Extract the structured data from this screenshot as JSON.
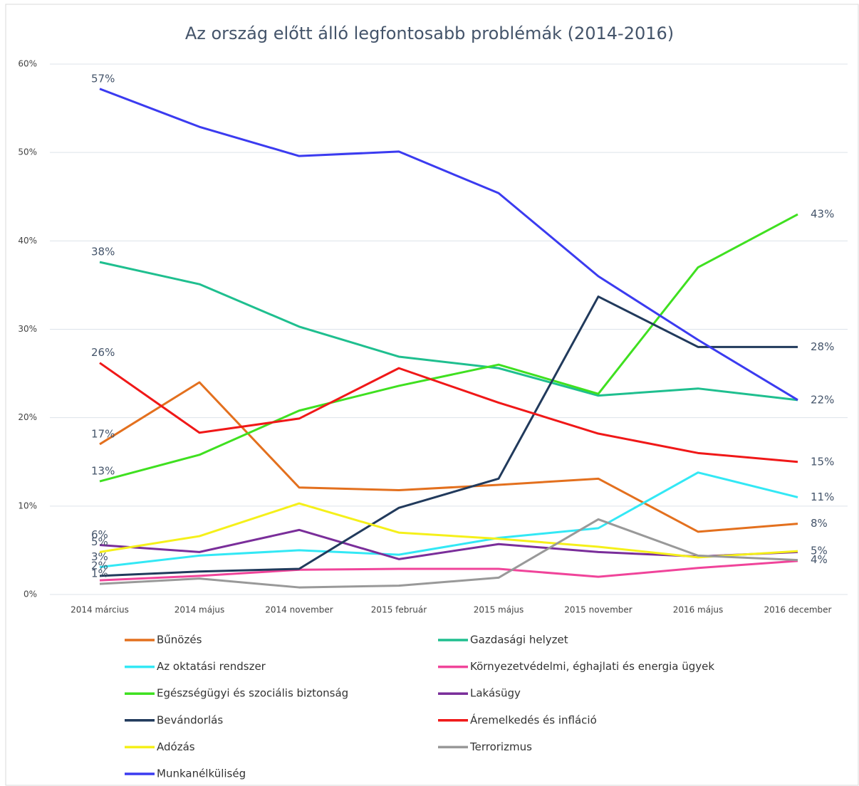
{
  "chart_data": {
    "type": "line",
    "title": "Az ország előtt álló legfontosabb problémák (2014-2016)",
    "categories": [
      "2014 március",
      "2014 május",
      "2014 november",
      "2015 február",
      "2015 május",
      "2015 november",
      "2016 május",
      "2016 december"
    ],
    "ylim": [
      0,
      60
    ],
    "yticks": [
      {
        "value": 0,
        "label": "0%"
      },
      {
        "value": 10,
        "label": "10%"
      },
      {
        "value": 20,
        "label": "20%"
      },
      {
        "value": 30,
        "label": "30%"
      },
      {
        "value": 40,
        "label": "40%"
      },
      {
        "value": 50,
        "label": "50%"
      },
      {
        "value": 60,
        "label": "60%"
      }
    ],
    "grid": true,
    "series": [
      {
        "name": "Bűnözés",
        "color": "#e3701e",
        "values": [
          17.0,
          24.0,
          12.1,
          11.8,
          12.4,
          13.1,
          7.1,
          8.0
        ],
        "value_labels": [
          "17%",
          null,
          null,
          null,
          null,
          null,
          null,
          "8%"
        ]
      },
      {
        "name": "Gazdasági helyzet",
        "color": "#1fbf8f",
        "values": [
          37.6,
          35.1,
          30.3,
          26.9,
          25.6,
          22.5,
          23.3,
          22.0
        ],
        "value_labels": [
          "38%",
          null,
          null,
          null,
          null,
          null,
          null,
          null
        ]
      },
      {
        "name": "Az oktatási rendszer",
        "color": "#33e8f5",
        "values": [
          3.1,
          4.4,
          5.0,
          4.5,
          6.4,
          7.5,
          13.8,
          11.0
        ],
        "value_labels": [
          "3%",
          null,
          null,
          null,
          null,
          null,
          null,
          "11%"
        ]
      },
      {
        "name": "Környezetvédelmi, éghajlati és energia ügyek",
        "color": "#f0449a",
        "values": [
          1.6,
          2.1,
          2.8,
          2.9,
          2.9,
          2.0,
          3.0,
          3.8
        ],
        "value_labels": [
          null,
          null,
          null,
          null,
          null,
          null,
          null,
          null
        ]
      },
      {
        "name": "Egészségügyi és szociális biztonság",
        "color": "#3fe020",
        "values": [
          12.8,
          15.8,
          20.8,
          23.6,
          26.0,
          22.7,
          37.0,
          43.0
        ],
        "value_labels": [
          "13%",
          null,
          null,
          null,
          null,
          null,
          null,
          "43%"
        ]
      },
      {
        "name": "Lakásügy",
        "color": "#7a2e9a",
        "values": [
          5.6,
          4.8,
          7.3,
          4.0,
          5.7,
          4.8,
          4.3,
          4.8
        ],
        "value_labels": [
          "6%",
          null,
          null,
          null,
          null,
          null,
          null,
          null
        ]
      },
      {
        "name": "Bevándorlás",
        "color": "#213a5c",
        "values": [
          2.1,
          2.6,
          2.9,
          9.8,
          13.1,
          33.7,
          28.0,
          28.0
        ],
        "value_labels": [
          "2%",
          null,
          null,
          null,
          null,
          null,
          null,
          "28%"
        ]
      },
      {
        "name": "Áremelkedés és infláció",
        "color": "#f01818",
        "values": [
          26.2,
          18.3,
          19.9,
          25.6,
          21.7,
          18.2,
          16.0,
          15.0
        ],
        "value_labels": [
          "26%",
          null,
          null,
          null,
          null,
          null,
          null,
          "15%"
        ]
      },
      {
        "name": "Adózás",
        "color": "#f5f01a",
        "values": [
          4.8,
          6.6,
          10.3,
          7.0,
          6.3,
          5.4,
          4.2,
          4.9
        ],
        "value_labels": [
          "5%",
          null,
          null,
          null,
          null,
          null,
          null,
          "5%"
        ]
      },
      {
        "name": "Terrorizmus",
        "color": "#999999",
        "values": [
          1.2,
          1.8,
          0.8,
          1.0,
          1.9,
          8.5,
          4.4,
          3.9
        ],
        "value_labels": [
          "1%",
          null,
          null,
          null,
          null,
          null,
          null,
          "4%"
        ]
      },
      {
        "name": "Munkanélküliség",
        "color": "#3b3bf0",
        "values": [
          57.2,
          52.9,
          49.6,
          50.1,
          45.4,
          36.0,
          28.8,
          22.0
        ],
        "value_labels": [
          "57%",
          null,
          null,
          null,
          null,
          null,
          null,
          "22%"
        ]
      }
    ]
  }
}
